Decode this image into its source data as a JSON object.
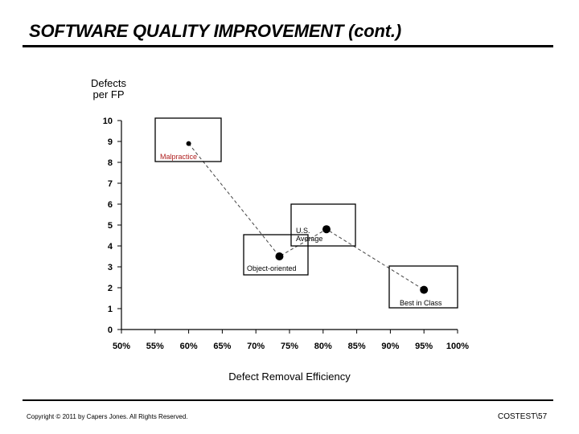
{
  "slide": {
    "title": "SOFTWARE QUALITY IMPROVEMENT (cont.)",
    "footer_left": "Copyright © 2011 by Capers Jones. All Rights Reserved.",
    "footer_right": "COSTEST\\57"
  },
  "chart_data": {
    "type": "scatter",
    "ylabel": "Defects\nper FP",
    "xlabel": "Defect Removal Efficiency",
    "xlim": [
      50,
      100
    ],
    "ylim": [
      0,
      10
    ],
    "x_ticks": [
      "50%",
      "55%",
      "60%",
      "65%",
      "70%",
      "75%",
      "80%",
      "85%",
      "90%",
      "95%",
      "100%"
    ],
    "y_ticks": [
      "0",
      "1",
      "2",
      "3",
      "4",
      "5",
      "6",
      "7",
      "8",
      "9",
      "10"
    ],
    "points": [
      {
        "label": "Malpractice",
        "x": 60,
        "y": 8.9
      },
      {
        "label": "U.S. Average",
        "x": 80.5,
        "y": 4.8
      },
      {
        "label": "Object-oriented",
        "x": 73.5,
        "y": 3.5
      },
      {
        "label": "Best in Class",
        "x": 95,
        "y": 1.9
      }
    ],
    "trend_line": "dashed"
  }
}
